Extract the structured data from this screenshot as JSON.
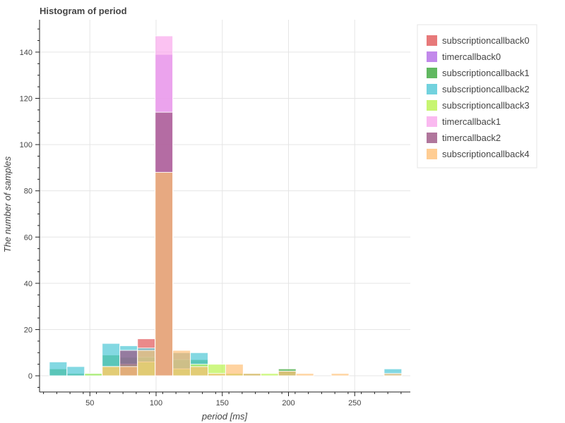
{
  "chart_data": {
    "type": "bar",
    "title": "Histogram of period",
    "xlabel": "period [ms]",
    "ylabel": "The number of samples",
    "xlim": [
      12,
      292
    ],
    "ylim": [
      -7,
      154
    ],
    "x_ticks": [
      50,
      100,
      150,
      200,
      250
    ],
    "y_ticks": [
      0,
      20,
      40,
      60,
      80,
      100,
      120,
      140
    ],
    "grid": true,
    "legend_position": "right",
    "bin_width": 13.3,
    "series": [
      {
        "name": "subscriptioncallback0",
        "color": "#e15759",
        "bins": [
          {
            "x0": 86,
            "count": 16
          },
          {
            "x0": 99.3,
            "count": 88
          },
          {
            "x0": 112.6,
            "count": 10
          }
        ]
      },
      {
        "name": "timercallback0",
        "color": "#b36be6",
        "bins": [
          {
            "x0": 99.3,
            "count": 139
          }
        ]
      },
      {
        "name": "subscriptioncallback1",
        "color": "#3aa63a",
        "bins": [
          {
            "x0": 19.4,
            "count": 3
          },
          {
            "x0": 32.7,
            "count": 1
          },
          {
            "x0": 59.3,
            "count": 9
          },
          {
            "x0": 72.6,
            "count": 8
          },
          {
            "x0": 86,
            "count": 8
          },
          {
            "x0": 99.3,
            "count": 88
          },
          {
            "x0": 112.6,
            "count": 7
          },
          {
            "x0": 125.9,
            "count": 7
          },
          {
            "x0": 139.2,
            "count": 1
          },
          {
            "x0": 152.5,
            "count": 1
          },
          {
            "x0": 165.8,
            "count": 1
          },
          {
            "x0": 192.4,
            "count": 3
          }
        ]
      },
      {
        "name": "subscriptioncallback2",
        "color": "#4fc7d6",
        "bins": [
          {
            "x0": 19.4,
            "count": 6
          },
          {
            "x0": 32.7,
            "count": 4
          },
          {
            "x0": 46,
            "count": 1
          },
          {
            "x0": 59.3,
            "count": 14
          },
          {
            "x0": 72.6,
            "count": 13
          },
          {
            "x0": 86,
            "count": 12
          },
          {
            "x0": 99.3,
            "count": 88
          },
          {
            "x0": 112.6,
            "count": 10
          },
          {
            "x0": 125.9,
            "count": 10
          },
          {
            "x0": 272.2,
            "count": 3
          }
        ]
      },
      {
        "name": "subscriptioncallback3",
        "color": "#b9f34e",
        "bins": [
          {
            "x0": 46,
            "count": 1
          },
          {
            "x0": 59.3,
            "count": 4
          },
          {
            "x0": 72.6,
            "count": 5
          },
          {
            "x0": 86,
            "count": 6
          },
          {
            "x0": 99.3,
            "count": 88
          },
          {
            "x0": 112.6,
            "count": 3
          },
          {
            "x0": 125.9,
            "count": 5
          },
          {
            "x0": 139.2,
            "count": 5
          },
          {
            "x0": 152.5,
            "count": 1
          },
          {
            "x0": 179.1,
            "count": 1
          }
        ]
      },
      {
        "name": "timercallback1",
        "color": "#f9a8ec",
        "bins": [
          {
            "x0": 99.3,
            "count": 147
          }
        ]
      },
      {
        "name": "timercallback2",
        "color": "#9c5483",
        "bins": [
          {
            "x0": 72.6,
            "count": 11
          },
          {
            "x0": 99.3,
            "count": 114
          }
        ]
      },
      {
        "name": "subscriptioncallback4",
        "color": "#ffc178",
        "bins": [
          {
            "x0": 59.3,
            "count": 4
          },
          {
            "x0": 72.6,
            "count": 4
          },
          {
            "x0": 86,
            "count": 11
          },
          {
            "x0": 99.3,
            "count": 88
          },
          {
            "x0": 112.6,
            "count": 11
          },
          {
            "x0": 125.9,
            "count": 4
          },
          {
            "x0": 139.2,
            "count": 1
          },
          {
            "x0": 152.5,
            "count": 5
          },
          {
            "x0": 165.8,
            "count": 1
          },
          {
            "x0": 192.4,
            "count": 2
          },
          {
            "x0": 205.7,
            "count": 1
          },
          {
            "x0": 232.3,
            "count": 1
          },
          {
            "x0": 272.2,
            "count": 1
          }
        ]
      }
    ]
  }
}
